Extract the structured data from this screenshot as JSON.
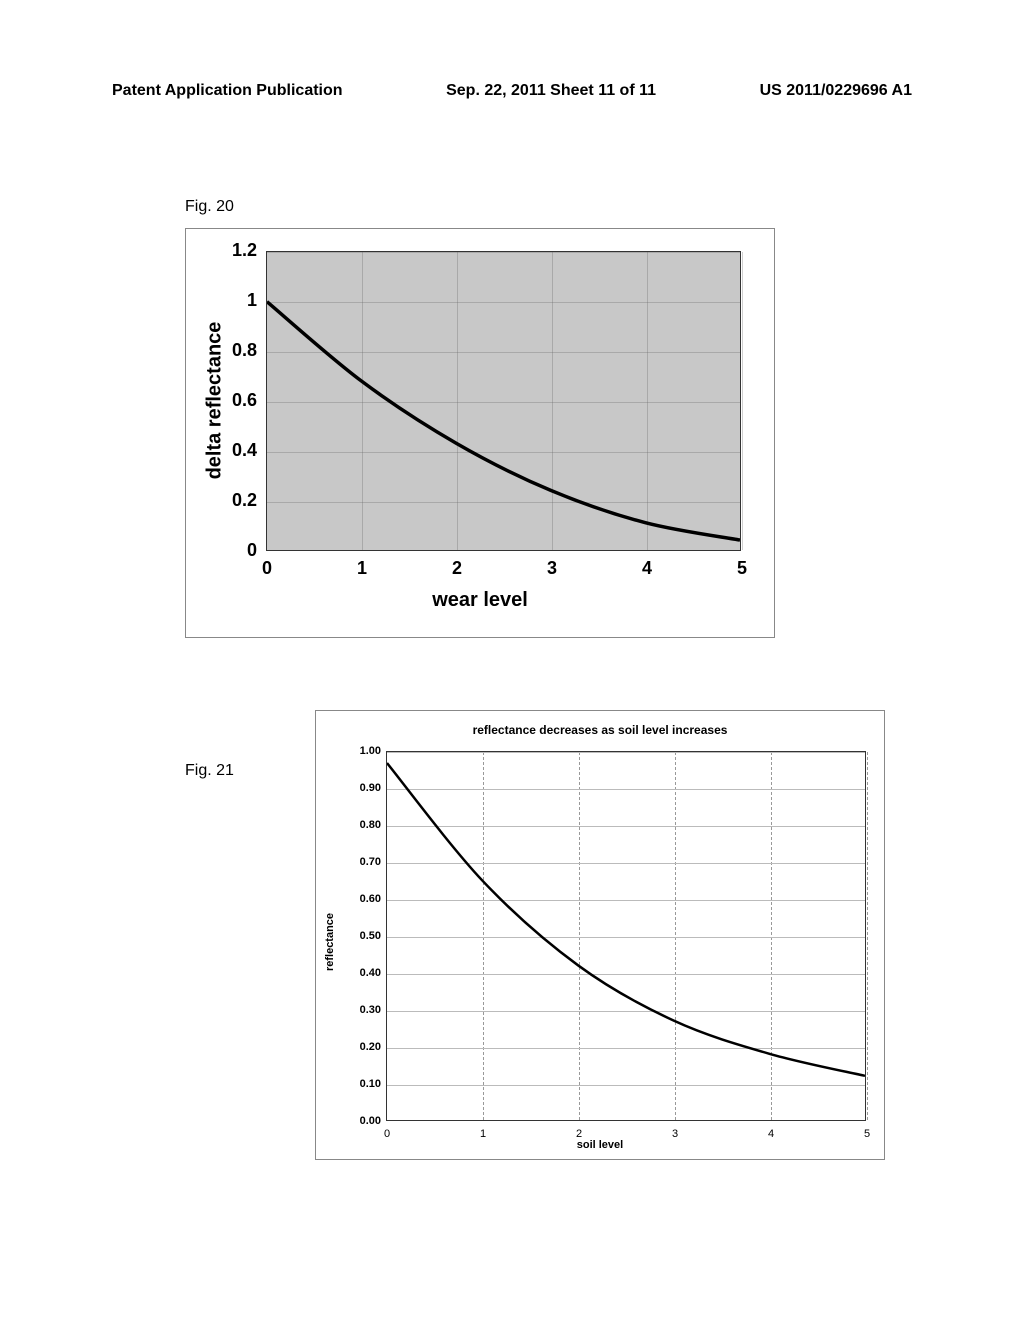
{
  "header": {
    "left": "Patent Application Publication",
    "center": "Sep. 22, 2011  Sheet 11 of 11",
    "right": "US 2011/0229696 A1"
  },
  "fig20": {
    "label": "Fig. 20",
    "type": "line",
    "ylabel": "delta reflectance",
    "xlabel": "wear level",
    "ylim": [
      0,
      1.2
    ],
    "xlim": [
      0,
      5
    ],
    "yticks": [
      0,
      0.2,
      0.4,
      0.6,
      0.8,
      1,
      1.2
    ],
    "xticks": [
      0,
      1,
      2,
      3,
      4,
      5
    ],
    "values": [
      {
        "x": 0,
        "y": 1.0
      },
      {
        "x": 1,
        "y": 0.68
      },
      {
        "x": 2,
        "y": 0.43
      },
      {
        "x": 3,
        "y": 0.24
      },
      {
        "x": 4,
        "y": 0.11
      },
      {
        "x": 5,
        "y": 0.04
      }
    ],
    "line_color": "#000000",
    "line_width": 3.5,
    "plot_bg": "#c8c8c8",
    "page_bg": "#ffffff"
  },
  "fig21": {
    "label": "Fig. 21",
    "type": "line",
    "title": "reflectance decreases as soil level increases",
    "ylabel": "reflectance",
    "xlabel": "soil level",
    "ylim": [
      0,
      1.0
    ],
    "xlim": [
      0,
      5
    ],
    "yticks": [
      0.0,
      0.1,
      0.2,
      0.3,
      0.4,
      0.5,
      0.6,
      0.7,
      0.8,
      0.9,
      1.0
    ],
    "ytick_labels": [
      "0.00",
      "0.10",
      "0.20",
      "0.30",
      "0.40",
      "0.50",
      "0.60",
      "0.70",
      "0.80",
      "0.90",
      "1.00"
    ],
    "xticks": [
      0,
      1,
      2,
      3,
      4,
      5
    ],
    "values": [
      {
        "x": 0,
        "y": 0.97
      },
      {
        "x": 1,
        "y": 0.65
      },
      {
        "x": 2,
        "y": 0.42
      },
      {
        "x": 3,
        "y": 0.27
      },
      {
        "x": 4,
        "y": 0.18
      },
      {
        "x": 5,
        "y": 0.12
      }
    ],
    "line_color": "#000000",
    "line_width": 2.5,
    "grid_color": "#888888",
    "plot_bg": "#ffffff"
  }
}
